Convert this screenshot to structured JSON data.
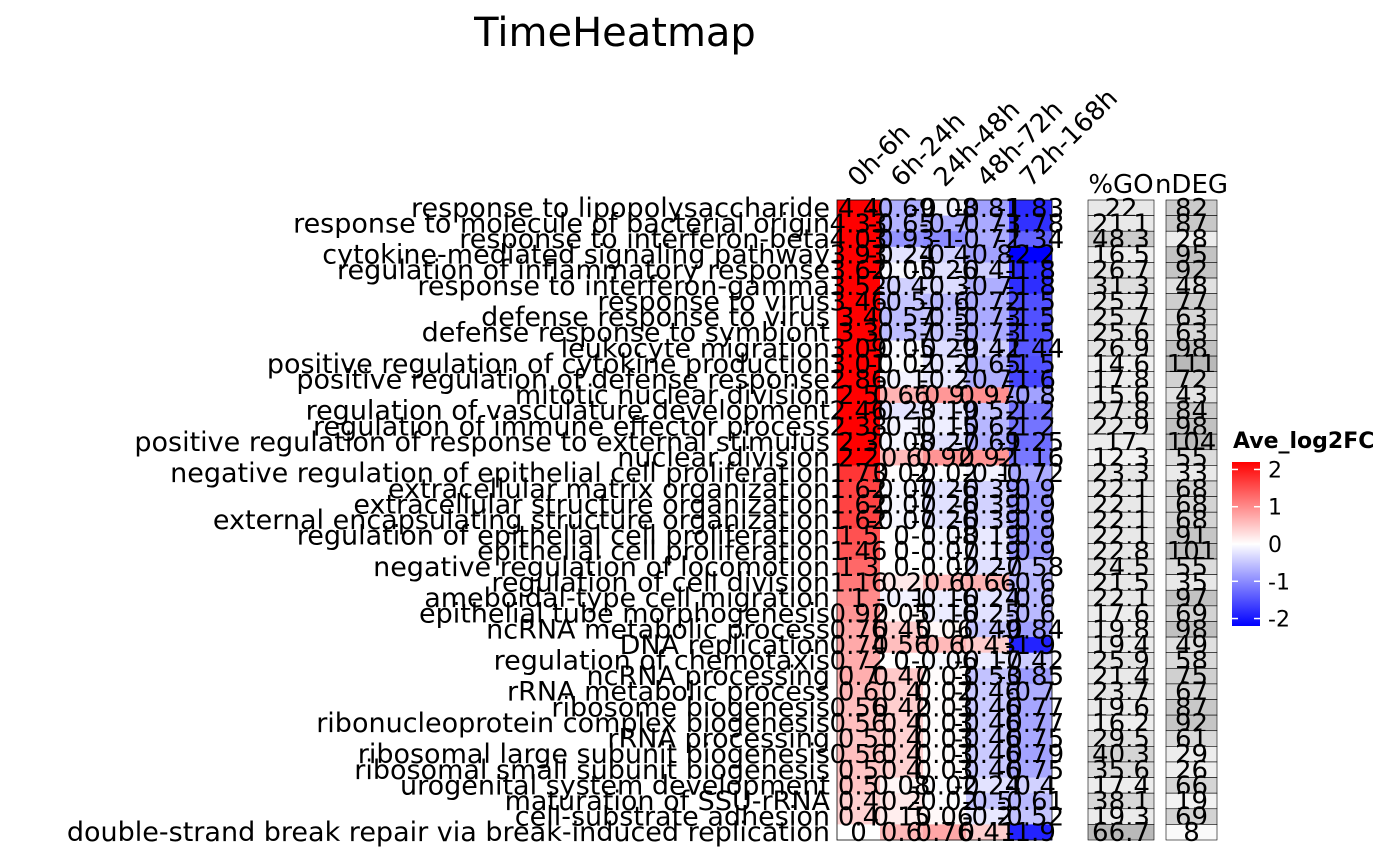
{
  "chart_data": {
    "type": "heatmap",
    "title": "TimeHeatmap",
    "columns": [
      "0h-6h",
      "6h-24h",
      "24h-48h",
      "48h-72h",
      "72h-168h"
    ],
    "annotation_headers": [
      "%GO",
      "nDEG"
    ],
    "legend": {
      "title": "Ave_log2FC",
      "ticks": [
        "2",
        "1",
        "0",
        "-1",
        "-2"
      ],
      "range": [
        -2.2,
        2.2
      ],
      "colors": {
        "low": "#0000ff",
        "mid": "#ffffff",
        "high": "#ff0000"
      }
    },
    "rows": [
      {
        "term": "response to lipopolysaccharide",
        "values": [
          4.4,
          -0.69,
          -0.08,
          -0.81,
          -1.83
        ],
        "pct_go": 22,
        "n_deg": 82
      },
      {
        "term": "response to molecule of bacterial origin",
        "values": [
          4.33,
          -0.65,
          -0.7,
          -0.73,
          -1.78
        ],
        "pct_go": 21.1,
        "n_deg": 87
      },
      {
        "term": "response to interferon-beta",
        "values": [
          4.03,
          -0.93,
          -1.0,
          -0.72,
          -1.34
        ],
        "pct_go": 48.3,
        "n_deg": 28
      },
      {
        "term": "cytokine-mediated signaling pathway",
        "values": [
          3.93,
          -0.24,
          -0.4,
          -0.8,
          -2.2
        ],
        "pct_go": 16.5,
        "n_deg": 95
      },
      {
        "term": "regulation of inflammatory response",
        "values": [
          3.62,
          -0.05,
          -0.26,
          -0.41,
          -1.8
        ],
        "pct_go": 26.7,
        "n_deg": 92
      },
      {
        "term": "response to interferon-gamma",
        "values": [
          3.52,
          -0.4,
          -0.3,
          -0.7,
          -1.8
        ],
        "pct_go": 31.3,
        "n_deg": 48
      },
      {
        "term": "response to virus",
        "values": [
          3.46,
          -0.5,
          -0.6,
          -0.72,
          -1.5
        ],
        "pct_go": 25.7,
        "n_deg": 77
      },
      {
        "term": "defense response to virus",
        "values": [
          3.4,
          -0.57,
          -0.5,
          -0.73,
          -1.5
        ],
        "pct_go": 25.7,
        "n_deg": 63
      },
      {
        "term": "defense response to symbiont",
        "values": [
          3.3,
          -0.57,
          -0.5,
          -0.73,
          -1.5
        ],
        "pct_go": 25.6,
        "n_deg": 63
      },
      {
        "term": "leukocyte migration",
        "values": [
          3.09,
          -0.05,
          -0.29,
          -0.42,
          -1.44
        ],
        "pct_go": 26.9,
        "n_deg": 98
      },
      {
        "term": "positive regulation of cytokine production",
        "values": [
          3.01,
          -0.02,
          -0.2,
          -0.65,
          -1.5
        ],
        "pct_go": 14.6,
        "n_deg": 111
      },
      {
        "term": "positive regulation of defense response",
        "values": [
          2.86,
          -0.1,
          -0.2,
          -0.7,
          -1.6
        ],
        "pct_go": 17.8,
        "n_deg": 72
      },
      {
        "term": "mitotic nuclear division",
        "values": [
          2.5,
          0.66,
          0.9,
          0.97,
          -0.8
        ],
        "pct_go": 15.6,
        "n_deg": 43
      },
      {
        "term": "regulation of vasculature development",
        "values": [
          2.46,
          -0.23,
          -0.19,
          -0.52,
          -1.2
        ],
        "pct_go": 27.8,
        "n_deg": 84
      },
      {
        "term": "regulation of immune effector process",
        "values": [
          2.38,
          -0.1,
          -0.15,
          -0.62,
          -1.2
        ],
        "pct_go": 22.9,
        "n_deg": 98
      },
      {
        "term": "positive regulation of response to external stimulus",
        "values": [
          2.3,
          -0.08,
          -0.27,
          -0.69,
          -1.25
        ],
        "pct_go": 17.0,
        "n_deg": 104
      },
      {
        "term": "nuclear division",
        "values": [
          2.2,
          0.6,
          0.92,
          0.92,
          -1.16
        ],
        "pct_go": 12.3,
        "n_deg": 55
      },
      {
        "term": "negative regulation of epithelial cell proliferation",
        "values": [
          1.73,
          0.02,
          -0.02,
          -0.1,
          -0.72
        ],
        "pct_go": 23.3,
        "n_deg": 33
      },
      {
        "term": "extracellular matrix organization",
        "values": [
          1.62,
          -0.07,
          -0.26,
          -0.39,
          -0.9
        ],
        "pct_go": 22.1,
        "n_deg": 68
      },
      {
        "term": "extracellular structure organization",
        "values": [
          1.62,
          -0.07,
          -0.26,
          -0.39,
          -0.9
        ],
        "pct_go": 22.1,
        "n_deg": 68
      },
      {
        "term": "external encapsulating structure organization",
        "values": [
          1.62,
          -0.07,
          -0.26,
          -0.39,
          -0.9
        ],
        "pct_go": 22.1,
        "n_deg": 68
      },
      {
        "term": "regulation of epithelial cell proliferation",
        "values": [
          1.5,
          0.0,
          -0.08,
          -0.19,
          -0.9
        ],
        "pct_go": 22.1,
        "n_deg": 91
      },
      {
        "term": "epithelial cell proliferation",
        "values": [
          1.46,
          0.0,
          -0.07,
          -0.19,
          -0.9
        ],
        "pct_go": 22.8,
        "n_deg": 101
      },
      {
        "term": "negative regulation of locomotion",
        "values": [
          1.3,
          0.0,
          -0.02,
          -0.27,
          -0.58
        ],
        "pct_go": 24.5,
        "n_deg": 55
      },
      {
        "term": "regulation of cell division",
        "values": [
          1.16,
          0.2,
          0.6,
          0.66,
          -0.6
        ],
        "pct_go": 21.5,
        "n_deg": 35
      },
      {
        "term": "ameboidal-type cell migration",
        "values": [
          1.0,
          -0.1,
          -0.16,
          -0.24,
          -0.6
        ],
        "pct_go": 22.1,
        "n_deg": 97
      },
      {
        "term": "epithelial tube morphogenesis",
        "values": [
          0.92,
          0.05,
          -0.16,
          -0.25,
          -0.6
        ],
        "pct_go": 17.6,
        "n_deg": 69
      },
      {
        "term": "ncRNA metabolic process",
        "values": [
          0.76,
          0.45,
          0.06,
          -0.49,
          -0.84
        ],
        "pct_go": 19.8,
        "n_deg": 98
      },
      {
        "term": "DNA replication",
        "values": [
          0.74,
          0.56,
          0.6,
          0.43,
          -1.9
        ],
        "pct_go": 19.4,
        "n_deg": 49
      },
      {
        "term": "regulation of chemotaxis",
        "values": [
          0.72,
          0.0,
          -0.06,
          -0.17,
          -0.42
        ],
        "pct_go": 25.9,
        "n_deg": 58
      },
      {
        "term": "ncRNA processing",
        "values": [
          0.7,
          0.47,
          0.03,
          -0.53,
          -0.85
        ],
        "pct_go": 21.4,
        "n_deg": 75
      },
      {
        "term": "rRNA metabolic process",
        "values": [
          0.6,
          0.4,
          0.02,
          -0.46,
          -0.7
        ],
        "pct_go": 23.7,
        "n_deg": 67
      },
      {
        "term": "ribosome biogenesis",
        "values": [
          0.56,
          0.42,
          0.03,
          -0.46,
          -0.77
        ],
        "pct_go": 19.6,
        "n_deg": 87
      },
      {
        "term": "ribonucleoprotein complex biogenesis",
        "values": [
          0.56,
          0.4,
          0.03,
          -0.46,
          -0.77
        ],
        "pct_go": 16.2,
        "n_deg": 92
      },
      {
        "term": "rRNA processing",
        "values": [
          0.5,
          0.4,
          0.03,
          -0.46,
          -0.75
        ],
        "pct_go": 29.5,
        "n_deg": 61
      },
      {
        "term": "ribosomal large subunit biogenesis",
        "values": [
          0.56,
          0.4,
          0.03,
          -0.46,
          -0.79
        ],
        "pct_go": 40.3,
        "n_deg": 29
      },
      {
        "term": "ribosomal small subunit biogenesis",
        "values": [
          0.5,
          0.4,
          0.03,
          -0.46,
          -0.75
        ],
        "pct_go": 35.6,
        "n_deg": 26
      },
      {
        "term": "urogenital system development",
        "values": [
          0.5,
          0.08,
          -0.02,
          -0.24,
          -0.4
        ],
        "pct_go": 17.4,
        "n_deg": 66
      },
      {
        "term": "maturation of SSU-rRNA",
        "values": [
          0.4,
          0.2,
          -0.02,
          -0.5,
          -0.61
        ],
        "pct_go": 38.1,
        "n_deg": 19
      },
      {
        "term": "cell-substrate adhesion",
        "values": [
          0.4,
          0.15,
          0.06,
          -0.2,
          -0.52
        ],
        "pct_go": 19.3,
        "n_deg": 69
      },
      {
        "term": "double-strand break repair via break-induced replication",
        "values": [
          0.0,
          0.6,
          0.76,
          0.41,
          -1.9
        ],
        "pct_go": 66.7,
        "n_deg": 8
      }
    ]
  }
}
